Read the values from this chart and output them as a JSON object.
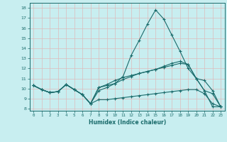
{
  "xlabel": "Humidex (Indice chaleur)",
  "bg_color": "#c8eef0",
  "line_color": "#1a6b6b",
  "grid_color": "#e8e8e8",
  "x_ticks": [
    0,
    1,
    2,
    3,
    4,
    5,
    6,
    7,
    8,
    9,
    10,
    11,
    12,
    13,
    14,
    15,
    16,
    17,
    18,
    19,
    20,
    21,
    22,
    23
  ],
  "y_ticks": [
    8,
    9,
    10,
    11,
    12,
    13,
    14,
    15,
    16,
    17,
    18
  ],
  "ylim": [
    7.8,
    18.5
  ],
  "xlim": [
    -0.5,
    23.5
  ],
  "series": [
    [
      10.3,
      9.9,
      9.6,
      9.7,
      10.4,
      9.9,
      9.4,
      8.5,
      10.1,
      10.3,
      10.5,
      11.2,
      13.3,
      14.8,
      16.4,
      17.8,
      16.9,
      15.3,
      13.7,
      12.0,
      11.0,
      9.8,
      8.2,
      8.2
    ],
    [
      10.3,
      9.9,
      9.6,
      9.7,
      10.4,
      9.9,
      9.4,
      8.5,
      8.9,
      8.9,
      9.0,
      9.1,
      9.2,
      9.3,
      9.4,
      9.5,
      9.6,
      9.7,
      9.8,
      9.9,
      9.9,
      9.5,
      8.5,
      8.2
    ],
    [
      10.3,
      9.9,
      9.6,
      9.7,
      10.4,
      9.9,
      9.4,
      8.5,
      9.8,
      10.1,
      10.5,
      10.9,
      11.2,
      11.5,
      11.7,
      11.9,
      12.1,
      12.3,
      12.5,
      12.4,
      11.0,
      10.8,
      9.8,
      8.2
    ],
    [
      10.3,
      9.9,
      9.6,
      9.7,
      10.4,
      9.9,
      9.4,
      8.5,
      10.1,
      10.4,
      10.8,
      11.1,
      11.3,
      11.5,
      11.7,
      11.9,
      12.2,
      12.5,
      12.7,
      12.4,
      11.0,
      9.8,
      9.5,
      8.2
    ]
  ]
}
